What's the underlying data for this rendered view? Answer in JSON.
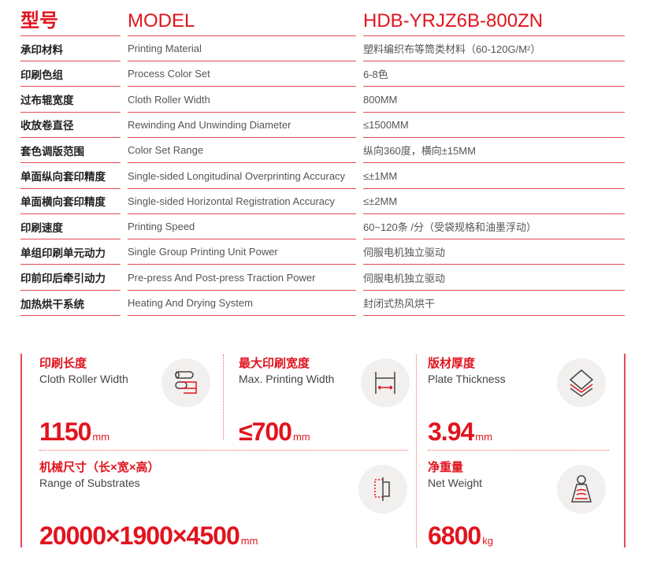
{
  "header": {
    "zh": "型号",
    "en": "MODEL",
    "value": "HDB-YRJZ6B-800ZN"
  },
  "rows": [
    {
      "zh": "承印材料",
      "en": "Printing Material",
      "value": "塑料编织布等筒类材料（60-120G/M²）"
    },
    {
      "zh": "印刷色组",
      "en": "Process Color Set",
      "value": "6-8色"
    },
    {
      "zh": "过布辊宽度",
      "en": "Cloth Roller Width",
      "value": "800MM"
    },
    {
      "zh": "收放卷直径",
      "en": "Rewinding And Unwinding Diameter",
      "value": "≤1500MM"
    },
    {
      "zh": "套色调版范围",
      "en": "Color Set Range",
      "value": "纵向360度，横向±15MM"
    },
    {
      "zh": "单面纵向套印精度",
      "en": "Single-sided Longitudinal Overprinting Accuracy",
      "value": "≤±1MM"
    },
    {
      "zh": "单面横向套印精度",
      "en": "Single-sided Horizontal Registration Accuracy",
      "value": "≤±2MM"
    },
    {
      "zh": "印刷速度",
      "en": "Printing Speed",
      "value": "60~120条 /分（受袋规格和油墨浮动）"
    },
    {
      "zh": "单组印刷单元动力",
      "en": "Single Group Printing Unit Power",
      "value": "伺服电机独立驱动"
    },
    {
      "zh": "印前印后牵引动力",
      "en": "Pre-press And Post-press Traction Power",
      "value": "伺服电机独立驱动"
    },
    {
      "zh": "加热烘干系统",
      "en": "Heating And Drying System",
      "value": "封闭式热风烘干"
    }
  ],
  "cards": [
    {
      "zh": "印刷长度",
      "en": "Cloth Roller Width",
      "value": "1150",
      "unit": "mm",
      "icon": "roller-icon"
    },
    {
      "zh": "最大印刷宽度",
      "en": "Max. Printing Width",
      "value": "≤700",
      "unit": "mm",
      "icon": "width-icon"
    },
    {
      "zh": "版材厚度",
      "en": "Plate Thickness",
      "value": "3.94",
      "unit": "mm",
      "icon": "layers-icon"
    },
    {
      "zh": "机械尺寸（长×宽×高）",
      "en": "Range of Substrates",
      "value": "20000×1900×4500",
      "unit": "mm",
      "icon": "dimension-icon"
    },
    {
      "zh": "净重量",
      "en": "Net Weight",
      "value": "6800",
      "unit": "kg",
      "icon": "weight-icon"
    }
  ],
  "colors": {
    "accent": "#e1141e"
  }
}
